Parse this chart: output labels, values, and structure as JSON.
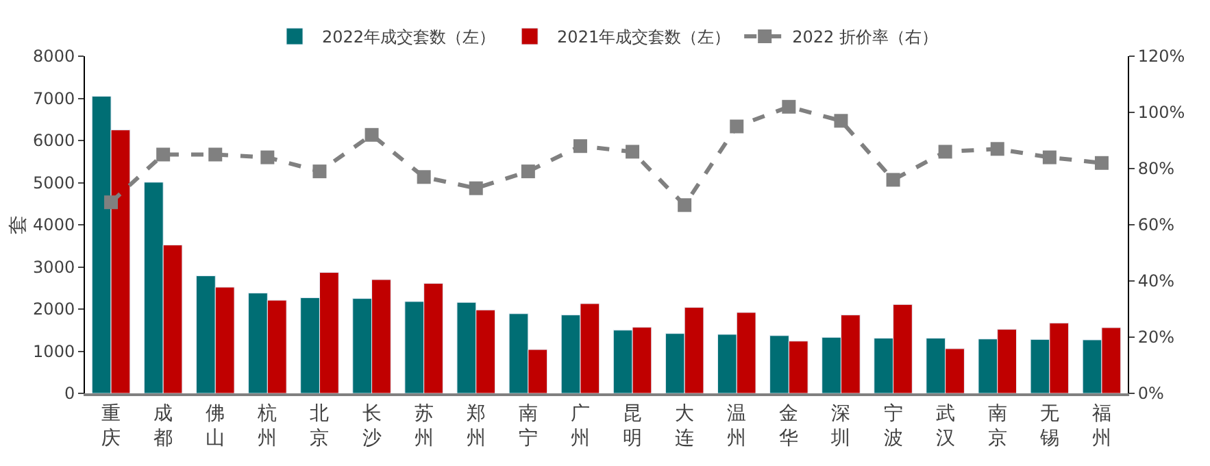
{
  "chart_data": {
    "type": "bar",
    "categories": [
      "重庆",
      "成都",
      "佛山",
      "杭州",
      "北京",
      "长沙",
      "苏州",
      "郑州",
      "南宁",
      "广州",
      "昆明",
      "大连",
      "温州",
      "金华",
      "深圳",
      "宁波",
      "武汉",
      "南京",
      "无锡",
      "福州"
    ],
    "series": [
      {
        "name": "2022年成交套数（左）",
        "color": "#006e74",
        "values": [
          7050,
          5010,
          2790,
          2380,
          2270,
          2250,
          2180,
          2160,
          1890,
          1860,
          1500,
          1420,
          1400,
          1370,
          1330,
          1310,
          1310,
          1290,
          1280,
          1270
        ]
      },
      {
        "name": "2021年成交套数（左）",
        "color": "#c00000",
        "values": [
          6250,
          3520,
          2520,
          2210,
          2870,
          2700,
          2610,
          1980,
          1040,
          2130,
          1570,
          2040,
          1920,
          1240,
          1860,
          2110,
          1060,
          1520,
          1670,
          1560
        ]
      },
      {
        "name": "2022 折价率（右）",
        "type": "line",
        "axis": "y2",
        "color": "#808080",
        "marker": "square",
        "line_style": "dashed",
        "values": [
          68,
          85,
          85,
          84,
          79,
          92,
          77,
          73,
          79,
          88,
          86,
          67,
          95,
          102,
          97,
          76,
          86,
          87,
          84,
          82
        ]
      }
    ],
    "ylabel": "套",
    "ylim": [
      0,
      8000
    ],
    "yticks": [
      0,
      1000,
      2000,
      3000,
      4000,
      5000,
      6000,
      7000,
      8000
    ],
    "y2lim": [
      0,
      120
    ],
    "y2ticks": [
      {
        "value": 0,
        "label": "0%"
      },
      {
        "value": 20,
        "label": "20%"
      },
      {
        "value": 40,
        "label": "40%"
      },
      {
        "value": 60,
        "label": "60%"
      },
      {
        "value": 80,
        "label": "80%"
      },
      {
        "value": 100,
        "label": "100%"
      },
      {
        "value": 120,
        "label": "120%"
      }
    ],
    "legend": "top"
  }
}
